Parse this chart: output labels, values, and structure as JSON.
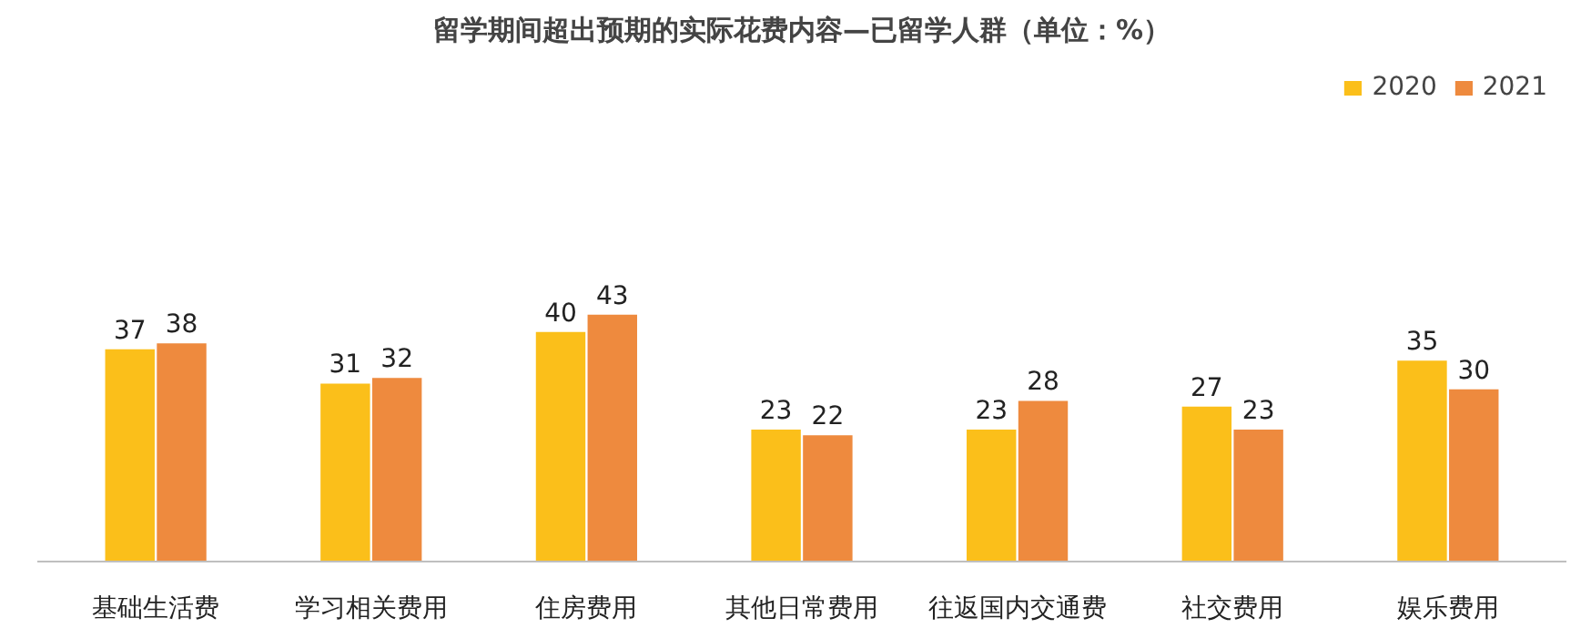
{
  "chart_data": {
    "type": "bar",
    "title": "留学期间超出预期的实际花费内容—已留学人群（单位：%）",
    "categories": [
      "基础生活费",
      "学习相关费用",
      "住房费用",
      "其他日常费用",
      "往返国内交通费",
      "社交费用",
      "娱乐费用"
    ],
    "series": [
      {
        "name": "2020",
        "color": "#fbbf1a",
        "values": [
          37,
          31,
          40,
          23,
          23,
          27,
          35
        ]
      },
      {
        "name": "2021",
        "color": "#ee8a3e",
        "values": [
          38,
          32,
          43,
          22,
          28,
          23,
          30
        ]
      }
    ],
    "data_labels": true,
    "legend": "top right",
    "grid": false
  }
}
